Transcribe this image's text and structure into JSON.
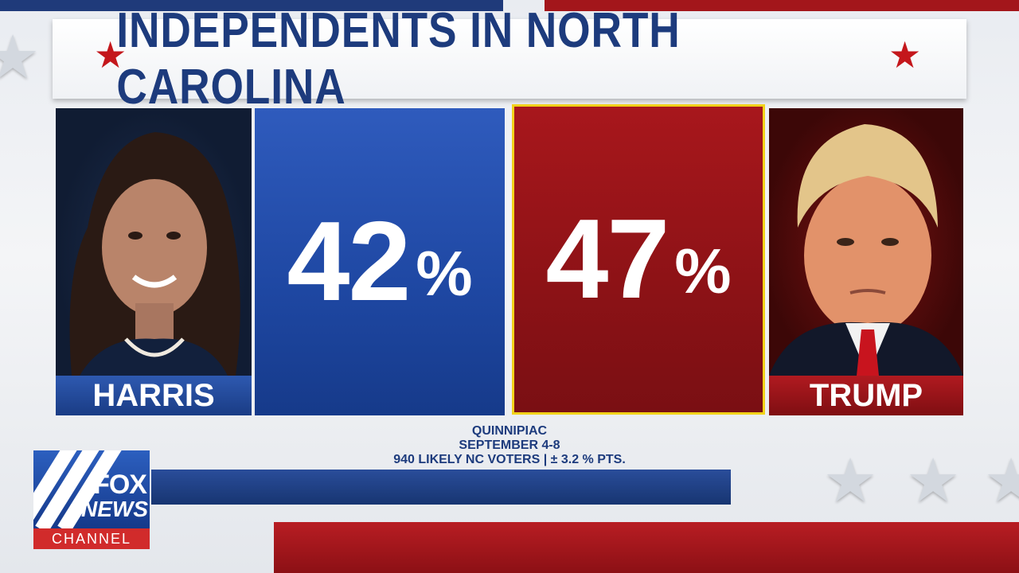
{
  "title": "INDEPENDENTS IN NORTH CAROLINA",
  "candidates": [
    {
      "name": "HARRIS",
      "percent": "42",
      "percent_sign": "%",
      "color": "#1e47a2"
    },
    {
      "name": "TRUMP",
      "percent": "47",
      "percent_sign": "%",
      "color": "#8c1216"
    }
  ],
  "source": {
    "pollster": "QUINNIPIAC",
    "dates": "SEPTEMBER 4-8",
    "sample": "940 LIKELY NC VOTERS | ± 3.2 % PTS."
  },
  "logo": {
    "fox": "FOX",
    "news": "NEWS",
    "channel": "CHANNEL"
  },
  "colors": {
    "title": "#1d3b7d",
    "accent_red": "#c4171c",
    "highlight_border": "#f2d21a"
  }
}
